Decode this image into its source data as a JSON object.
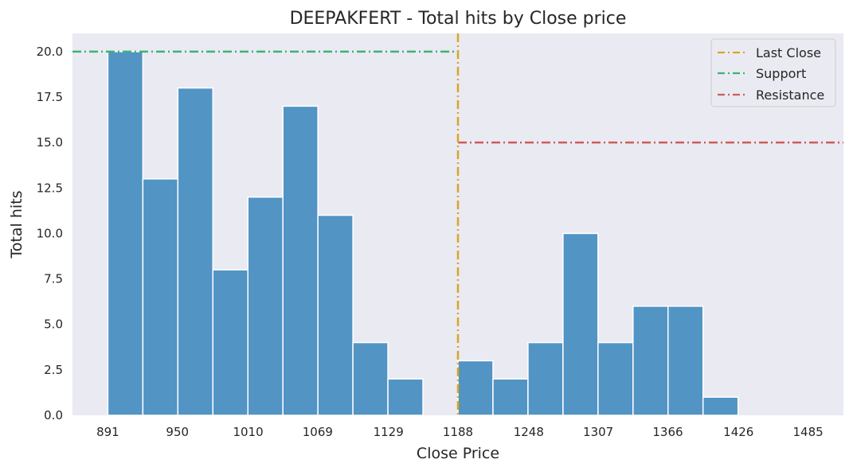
{
  "chart_data": {
    "type": "bar",
    "title": "DEEPAKFERT - Total hits by Close price",
    "xlabel": "Close Price",
    "ylabel": "Total hits",
    "x_ticks": [
      "891",
      "950",
      "1010",
      "1069",
      "1129",
      "1188",
      "1248",
      "1307",
      "1366",
      "1426",
      "1485"
    ],
    "x_tick_values": [
      891,
      950,
      1010,
      1069,
      1129,
      1188,
      1248,
      1307,
      1366,
      1426,
      1485
    ],
    "y_ticks": [
      "0.0",
      "2.5",
      "5.0",
      "7.5",
      "10.0",
      "12.5",
      "15.0",
      "17.5",
      "20.0"
    ],
    "y_tick_values": [
      0,
      2.5,
      5,
      7.5,
      10,
      12.5,
      15,
      17.5,
      20
    ],
    "ylim": [
      0,
      21
    ],
    "xlim": [
      861,
      1515
    ],
    "bin_width": 29.7,
    "bins": [
      {
        "start": 891.0,
        "value": 20
      },
      {
        "start": 920.7,
        "value": 13
      },
      {
        "start": 950.4,
        "value": 18
      },
      {
        "start": 980.1,
        "value": 8
      },
      {
        "start": 1009.8,
        "value": 12
      },
      {
        "start": 1039.5,
        "value": 17
      },
      {
        "start": 1069.2,
        "value": 11
      },
      {
        "start": 1098.9,
        "value": 4
      },
      {
        "start": 1128.6,
        "value": 2
      },
      {
        "start": 1158.3,
        "value": 0
      },
      {
        "start": 1188.0,
        "value": 3
      },
      {
        "start": 1217.7,
        "value": 2
      },
      {
        "start": 1247.4,
        "value": 4
      },
      {
        "start": 1277.1,
        "value": 10
      },
      {
        "start": 1306.8,
        "value": 4
      },
      {
        "start": 1336.5,
        "value": 6
      },
      {
        "start": 1366.2,
        "value": 6
      },
      {
        "start": 1395.9,
        "value": 1
      },
      {
        "start": 1425.6,
        "value": 0
      },
      {
        "start": 1455.3,
        "value": 0
      }
    ],
    "lines": {
      "last_close": {
        "label": "Last Close",
        "x": 1188,
        "color": "#DAA520"
      },
      "support": {
        "label": "Support",
        "y": 20,
        "x_end": 1188,
        "color": "#3CB371"
      },
      "resistance": {
        "label": "Resistance",
        "y": 15,
        "x_start": 1188,
        "color": "#CD5C5C"
      }
    },
    "bar_color": "#5294c4",
    "background_color": "#eaeaf2",
    "grid": false,
    "legend_position": "top-right"
  }
}
